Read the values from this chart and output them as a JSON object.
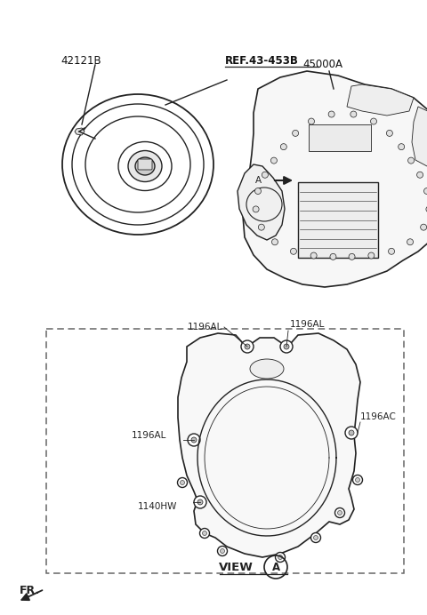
{
  "bg_color": "#ffffff",
  "line_color": "#222222",
  "label_color": "#111111",
  "fig_width": 4.8,
  "fig_height": 6.92,
  "dpi": 100,
  "top_labels": {
    "part_42121B": "42121B",
    "ref_label": "REF.43-453B",
    "part_45000A": "45000A"
  },
  "bottom_labels": {
    "label1": "1196AL",
    "label2": "1196AL",
    "label3": "1196AC",
    "label4": "1196AL",
    "label5": "1140HW",
    "view": "VIEW",
    "view_circle": "A"
  },
  "fr_label": "FR."
}
